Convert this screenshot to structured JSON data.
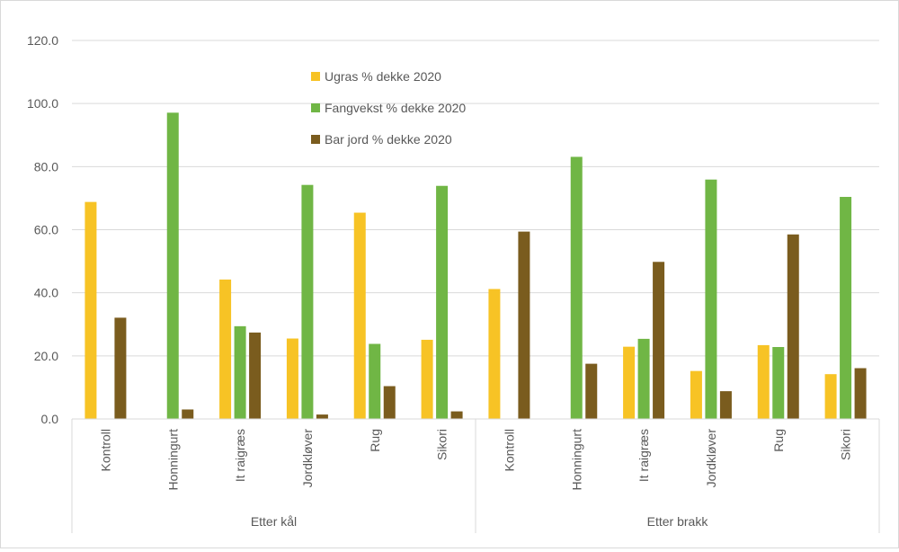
{
  "chart_data": {
    "type": "bar",
    "title": "",
    "xlabel": "",
    "ylabel": "",
    "ylim": [
      0,
      120
    ],
    "yticks": [
      "0.0",
      "20.0",
      "40.0",
      "60.0",
      "80.0",
      "100.0",
      "120.0"
    ],
    "grid": true,
    "legend_position": "top-center",
    "groups": [
      {
        "label": "Etter kål",
        "categories": [
          "Kontroll",
          "Honningurt",
          "It raigræs",
          "Jordkløver",
          "Rug",
          "Sikori"
        ]
      },
      {
        "label": "Etter brakk",
        "categories": [
          "Kontroll",
          "Honningurt",
          "It raigræs",
          "Jordkløver",
          "Rug",
          "Sikori"
        ]
      }
    ],
    "series": [
      {
        "name": "Ugras % dekke 2020",
        "color": "#f7c325",
        "values": [
          68.8,
          0,
          44.2,
          25.5,
          65.4,
          25.1,
          41.2,
          0,
          22.9,
          15.2,
          23.4,
          14.2
        ]
      },
      {
        "name": "Fangvekst % dekke 2020",
        "color": "#70b645",
        "values": [
          0,
          97.1,
          29.4,
          74.2,
          23.8,
          73.9,
          0,
          83.1,
          25.4,
          75.9,
          22.8,
          70.4
        ]
      },
      {
        "name": "Bar jord % dekke 2020",
        "color": "#7a5c1e",
        "values": [
          32.1,
          3.0,
          27.4,
          1.4,
          10.4,
          2.4,
          59.4,
          17.5,
          49.8,
          8.8,
          58.5,
          16.1
        ]
      }
    ]
  }
}
